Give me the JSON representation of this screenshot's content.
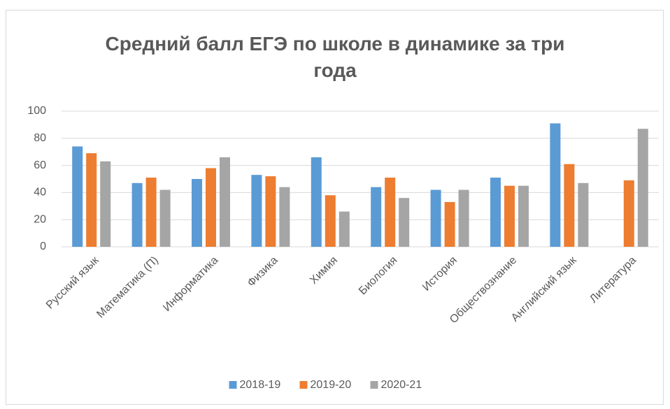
{
  "chart_data": {
    "type": "bar",
    "title": "Средний балл ЕГЭ по школе в динамике за три года",
    "categories": [
      "Русский язык",
      "Математика (П)",
      "Информатика",
      "Физика",
      "Химия",
      "Биология",
      "История",
      "Обществознание",
      "Английский язык",
      "Литература"
    ],
    "series": [
      {
        "name": "2018-19",
        "color": "#5b9bd5",
        "values": [
          74,
          47,
          50,
          53,
          66,
          44,
          42,
          51,
          91,
          null
        ]
      },
      {
        "name": "2019-20",
        "color": "#ed7d31",
        "values": [
          69,
          51,
          58,
          52,
          38,
          51,
          33,
          45,
          61,
          49
        ]
      },
      {
        "name": "2020-21",
        "color": "#a5a5a5",
        "values": [
          63,
          42,
          66,
          44,
          26,
          36,
          42,
          45,
          47,
          87
        ]
      }
    ],
    "ylim": [
      0,
      100
    ],
    "yticks": [
      0,
      20,
      40,
      60,
      80,
      100
    ],
    "grid": true,
    "legend": "bottom"
  }
}
